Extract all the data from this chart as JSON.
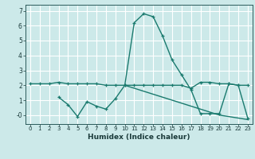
{
  "xlabel": "Humidex (Indice chaleur)",
  "background_color": "#cce9e9",
  "grid_color": "#b0d8d8",
  "line_color": "#1a7a6e",
  "x": [
    0,
    1,
    2,
    3,
    4,
    5,
    6,
    7,
    8,
    9,
    10,
    11,
    12,
    13,
    14,
    15,
    16,
    17,
    18,
    19,
    20,
    21,
    22,
    23
  ],
  "series1": [
    2.1,
    2.1,
    2.1,
    2.2,
    2.1,
    2.1,
    2.1,
    2.1,
    2.0,
    2.0,
    2.0,
    2.0,
    2.0,
    2.0,
    2.0,
    2.0,
    2.0,
    1.8,
    2.2,
    2.2,
    2.1,
    2.1,
    2.0,
    2.0
  ],
  "series2": [
    null,
    null,
    null,
    1.2,
    0.7,
    -0.1,
    0.9,
    0.6,
    0.4,
    1.1,
    2.0,
    6.2,
    6.8,
    6.6,
    5.3,
    3.7,
    2.7,
    1.7,
    0.1,
    0.1,
    0.1,
    2.1,
    2.0,
    -0.2
  ],
  "series3": [
    null,
    null,
    null,
    null,
    null,
    null,
    null,
    null,
    null,
    null,
    2.0,
    1.8,
    1.6,
    1.4,
    1.2,
    1.0,
    0.8,
    0.6,
    0.4,
    0.2,
    0.0,
    -0.1,
    -0.2,
    -0.3
  ],
  "ylim": [
    -0.6,
    7.4
  ],
  "xlim": [
    -0.5,
    23.5
  ],
  "yticks": [
    0,
    1,
    2,
    3,
    4,
    5,
    6,
    7
  ],
  "ytick_labels": [
    "-0",
    "1",
    "2",
    "3",
    "4",
    "5",
    "6",
    "7"
  ],
  "xticks": [
    0,
    1,
    2,
    3,
    4,
    5,
    6,
    7,
    8,
    9,
    10,
    11,
    12,
    13,
    14,
    15,
    16,
    17,
    18,
    19,
    20,
    21,
    22,
    23
  ]
}
